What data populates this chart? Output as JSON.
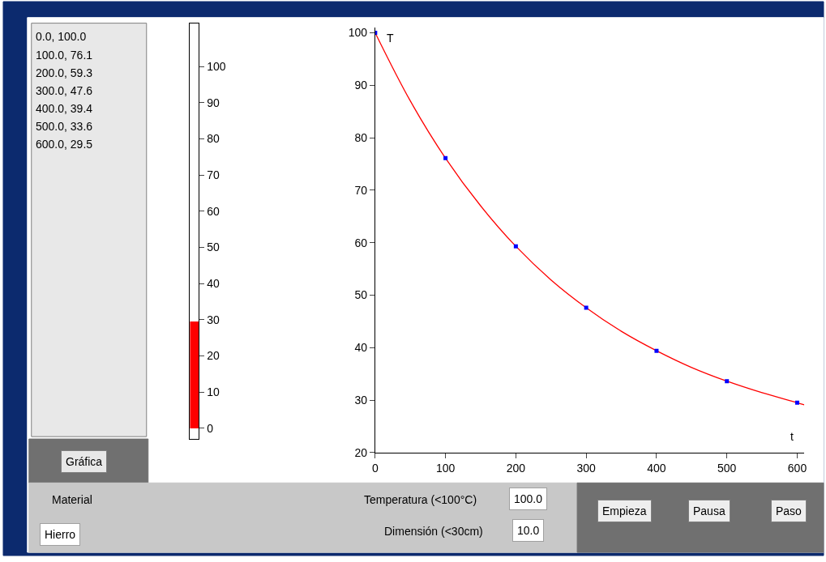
{
  "chart_data": [
    {
      "type": "other",
      "annotations": [
        "0.0, 100.0",
        "100.0, 76.1",
        "200.0, 59.3",
        "300.0, 47.6",
        "400.0, 39.4",
        "500.0, 33.6",
        "600.0, 29.5",
        "Gráfica"
      ]
    },
    {
      "type": "bar",
      "categories": [
        null
      ],
      "values": [
        29.5
      ],
      "colors": [
        "#ff0000"
      ],
      "ylim": [
        -3,
        112
      ],
      "yticks": [
        0,
        10,
        20,
        30,
        40,
        50,
        60,
        70,
        80,
        90,
        100
      ],
      "tick_labels": "y"
    },
    {
      "type": "line",
      "xlabel": "t",
      "ylabel": "T",
      "xlim": [
        0,
        610
      ],
      "xticks": [
        0,
        100,
        200,
        300,
        400,
        500,
        600
      ],
      "ylim": [
        20,
        101
      ],
      "yticks": [
        20,
        30,
        40,
        50,
        60,
        70,
        80,
        90,
        100
      ],
      "series": [
        {
          "type": "line",
          "color": "#ff0000",
          "x": [
            0,
            50,
            100,
            150,
            200,
            250,
            300,
            350,
            400,
            450,
            500,
            550,
            600,
            610
          ],
          "values": [
            100,
            87.0,
            76.1,
            67.0,
            59.3,
            52.9,
            47.6,
            43.1,
            39.4,
            36.2,
            33.6,
            31.4,
            29.5,
            29.1
          ]
        },
        {
          "type": "scatter",
          "marker": "square",
          "color": "#0000ff",
          "x": [
            0,
            100,
            200,
            300,
            400,
            500,
            600
          ],
          "values": [
            100,
            76.1,
            59.3,
            47.6,
            39.4,
            33.6,
            29.5
          ]
        }
      ]
    },
    {
      "type": "other",
      "annotations": [
        "Material",
        "Hierro",
        "Temperatura (<100°C)",
        "100.0",
        "Dimensión (<30cm)",
        "10.0",
        "Empieza",
        "Pausa",
        "Paso"
      ]
    }
  ]
}
